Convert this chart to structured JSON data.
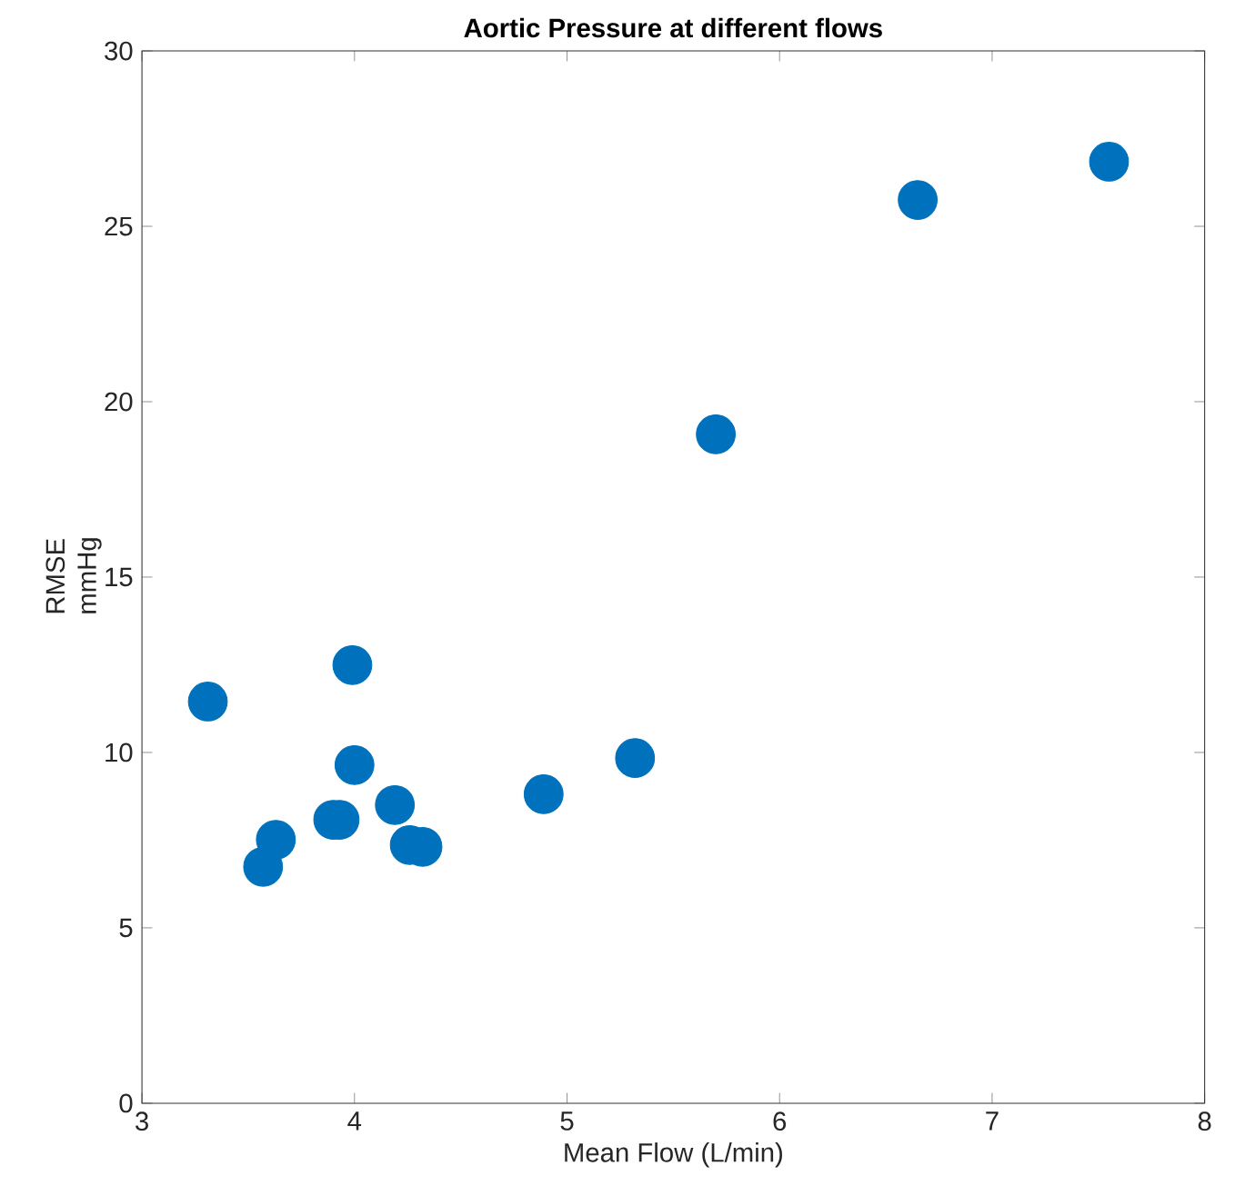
{
  "chart_data": {
    "type": "scatter",
    "title": "Aortic Pressure at different flows",
    "xlabel": "Mean Flow (L/min)",
    "ylabel": "RMSE mmHg",
    "xlim": [
      3,
      8
    ],
    "xticks": [
      3,
      4,
      5,
      6,
      7,
      8
    ],
    "ylim": [
      0,
      30
    ],
    "yticks": [
      0,
      5,
      10,
      15,
      20,
      25,
      30
    ],
    "grid": false,
    "series": [
      {
        "color": "#0072bd",
        "x": [
          3.31,
          3.99,
          3.57,
          3.63,
          3.9,
          3.93,
          4.0,
          4.19,
          4.26,
          4.32,
          4.89,
          5.32,
          5.7,
          6.65,
          7.55
        ],
        "values": [
          11.45,
          12.49,
          6.74,
          7.51,
          8.08,
          8.08,
          9.64,
          8.5,
          7.36,
          7.31,
          8.81,
          9.84,
          19.07,
          25.75,
          26.84
        ]
      }
    ]
  }
}
